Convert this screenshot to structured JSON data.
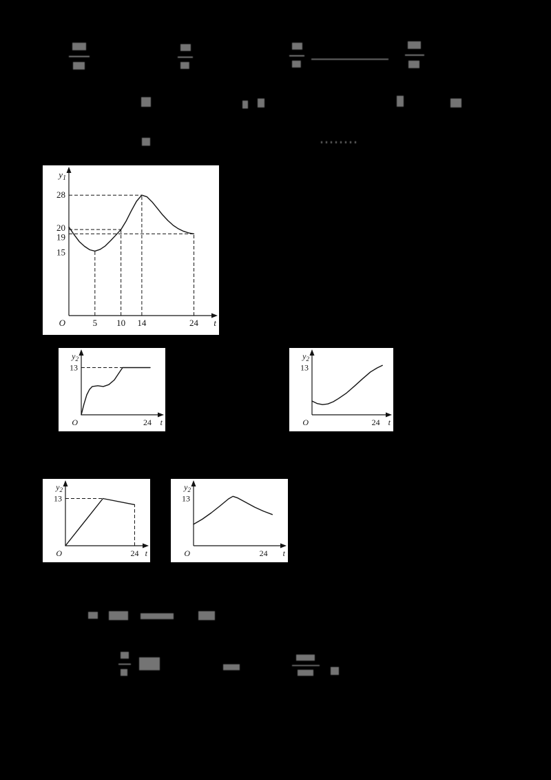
{
  "page": {
    "background": "#000000",
    "panel": "#ffffff",
    "ink": "#141414"
  },
  "chart_data": [
    {
      "id": "y1-temperature-curve",
      "type": "line",
      "title": "",
      "xlabel": "t",
      "ylabel": "y_1",
      "origin": "O",
      "xlim": [
        0,
        27.5
      ],
      "ylim": [
        0,
        33
      ],
      "font": 13,
      "margins": {
        "l": 38,
        "r": 10,
        "t": 12,
        "b": 28
      },
      "xticks": [
        {
          "v": 5,
          "label": "5"
        },
        {
          "v": 10,
          "label": "10"
        },
        {
          "v": 14,
          "label": "14"
        },
        {
          "v": 24,
          "label": "24"
        }
      ],
      "yticks": [
        {
          "v": 28,
          "label": "28"
        },
        {
          "v": 20,
          "label": "20",
          "dy": -2
        },
        {
          "v": 19,
          "label": "19",
          "dy": 5
        },
        {
          "v": 15,
          "label": "15",
          "dy": 2
        }
      ],
      "points": [
        [
          0,
          20.6
        ],
        [
          1,
          18.8
        ],
        [
          2,
          17.2
        ],
        [
          3,
          16.1
        ],
        [
          4,
          15.3
        ],
        [
          5,
          15
        ],
        [
          6,
          15.4
        ],
        [
          7,
          16.2
        ],
        [
          8,
          17.4
        ],
        [
          9,
          18.7
        ],
        [
          10,
          20
        ],
        [
          11,
          22
        ],
        [
          12,
          24.4
        ],
        [
          13,
          26.6
        ],
        [
          14,
          28
        ],
        [
          15,
          27.6
        ],
        [
          16,
          26.4
        ],
        [
          17,
          24.9
        ],
        [
          18,
          23.4
        ],
        [
          19,
          22.1
        ],
        [
          20,
          21
        ],
        [
          21,
          20.2
        ],
        [
          22,
          19.6
        ],
        [
          23,
          19.2
        ],
        [
          24,
          19
        ]
      ],
      "guides": [
        [
          0,
          28,
          14,
          28
        ],
        [
          0,
          20,
          10,
          20
        ],
        [
          0,
          19,
          24,
          19
        ],
        [
          5,
          0,
          5,
          15
        ],
        [
          10,
          0,
          10,
          20
        ],
        [
          14,
          0,
          14,
          28
        ],
        [
          24,
          0,
          24,
          19
        ]
      ]
    },
    {
      "id": "y2-option-rise-then-constant",
      "type": "line",
      "title": "",
      "xlabel": "t",
      "ylabel": "y_2",
      "origin": "O",
      "xlim": [
        0,
        28
      ],
      "ylim": [
        0,
        16.5
      ],
      "font": 12,
      "margins": {
        "l": 33,
        "r": 10,
        "t": 10,
        "b": 24
      },
      "xticks": [
        {
          "v": 24,
          "label": "24"
        }
      ],
      "yticks": [
        {
          "v": 13,
          "label": "13"
        }
      ],
      "points": [
        [
          0,
          0
        ],
        [
          1,
          3
        ],
        [
          2,
          5.5
        ],
        [
          3,
          7
        ],
        [
          4,
          7.8
        ],
        [
          6,
          8
        ],
        [
          8,
          7.8
        ],
        [
          10,
          8.3
        ],
        [
          12,
          9.6
        ],
        [
          13.5,
          11.3
        ],
        [
          15,
          13
        ],
        [
          25,
          13
        ]
      ],
      "guides": [
        [
          0,
          13,
          15,
          13
        ]
      ]
    },
    {
      "id": "y2-option-dip-then-rise",
      "type": "line",
      "title": "",
      "xlabel": "t",
      "ylabel": "y_2",
      "origin": "O",
      "xlim": [
        0,
        28
      ],
      "ylim": [
        0,
        16.5
      ],
      "font": 12,
      "margins": {
        "l": 33,
        "r": 10,
        "t": 10,
        "b": 24
      },
      "xticks": [
        {
          "v": 24,
          "label": "24"
        }
      ],
      "yticks": [
        {
          "v": 13,
          "label": "13"
        }
      ],
      "points": [
        [
          0,
          3.8
        ],
        [
          2,
          3.1
        ],
        [
          4,
          2.8
        ],
        [
          6,
          3
        ],
        [
          8,
          3.6
        ],
        [
          10,
          4.5
        ],
        [
          13,
          6
        ],
        [
          16,
          7.9
        ],
        [
          19,
          9.9
        ],
        [
          22,
          11.8
        ],
        [
          24.5,
          12.9
        ],
        [
          26.5,
          13.6
        ]
      ],
      "guides": []
    },
    {
      "id": "y2-option-linear-rise-then-fall",
      "type": "line",
      "title": "",
      "xlabel": "t",
      "ylabel": "y_2",
      "origin": "O",
      "xlim": [
        0,
        27
      ],
      "ylim": [
        0,
        16.5
      ],
      "font": 12,
      "margins": {
        "l": 33,
        "r": 10,
        "t": 10,
        "b": 24
      },
      "xticks": [
        {
          "v": 24,
          "label": "24"
        }
      ],
      "yticks": [
        {
          "v": 13,
          "label": "13"
        }
      ],
      "points": [
        [
          0,
          0
        ],
        [
          13,
          13
        ],
        [
          24,
          11.3
        ]
      ],
      "guides": [
        [
          0,
          13,
          13,
          13
        ],
        [
          24,
          0,
          24,
          11.3
        ]
      ]
    },
    {
      "id": "y2-option-hump",
      "type": "line",
      "title": "",
      "xlabel": "t",
      "ylabel": "y_2",
      "origin": "O",
      "xlim": [
        0,
        30
      ],
      "ylim": [
        0,
        16.5
      ],
      "font": 12,
      "margins": {
        "l": 33,
        "r": 10,
        "t": 10,
        "b": 24
      },
      "xticks": [
        {
          "v": 24,
          "label": "24"
        }
      ],
      "yticks": [
        {
          "v": 13,
          "label": "13"
        }
      ],
      "points": [
        [
          0,
          5.9
        ],
        [
          3,
          7.3
        ],
        [
          6,
          9
        ],
        [
          9,
          10.9
        ],
        [
          12,
          12.9
        ],
        [
          13.5,
          13.6
        ],
        [
          15,
          13.2
        ],
        [
          18,
          11.9
        ],
        [
          21,
          10.6
        ],
        [
          24,
          9.5
        ],
        [
          27,
          8.6
        ]
      ],
      "guides": []
    }
  ]
}
